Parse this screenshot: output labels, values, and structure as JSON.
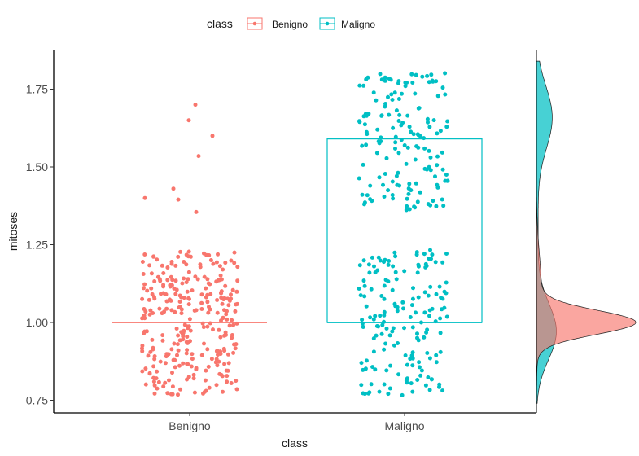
{
  "chart_data": {
    "type": "scatter",
    "subtype": "jitter-boxplot-with-marginal-density",
    "xlabel": "class",
    "ylabel": "mitoses",
    "categories": [
      "Benigno",
      "Maligno"
    ],
    "ylim": [
      0.72,
      1.86
    ],
    "y_ticks": [
      0.75,
      1.0,
      1.25,
      1.5,
      1.75
    ],
    "y_tick_labels": [
      "0.75",
      "1.00",
      "1.25",
      "1.50",
      "1.75"
    ],
    "grid": false,
    "legend": {
      "title": "class",
      "position": "top",
      "entries": [
        {
          "label": "Benigno",
          "color": "#F8766D"
        },
        {
          "label": "Maligno",
          "color": "#00BFC4"
        }
      ]
    },
    "series": [
      {
        "name": "Benigno",
        "color": "#F8766D",
        "box": {
          "lower": 1.0,
          "q1": 1.0,
          "median": 1.0,
          "q3": 1.0,
          "upper": 1.0
        },
        "jitter_points": 300,
        "outliers": [
          1.7,
          1.65,
          1.6,
          1.535,
          1.43,
          1.4,
          1.395,
          1.355
        ]
      },
      {
        "name": "Maligno",
        "color": "#00BFC4",
        "box": {
          "lower": 1.0,
          "q1": 1.0,
          "median": 1.0,
          "q3": 1.59,
          "upper": 1.59
        },
        "jitter_points": 320
      }
    ],
    "marginal_density": {
      "side": "right",
      "series": [
        {
          "name": "Benigno",
          "peak_at": 1.0
        },
        {
          "name": "Maligno",
          "peaks_at": [
            1.0,
            1.67
          ]
        }
      ]
    }
  }
}
